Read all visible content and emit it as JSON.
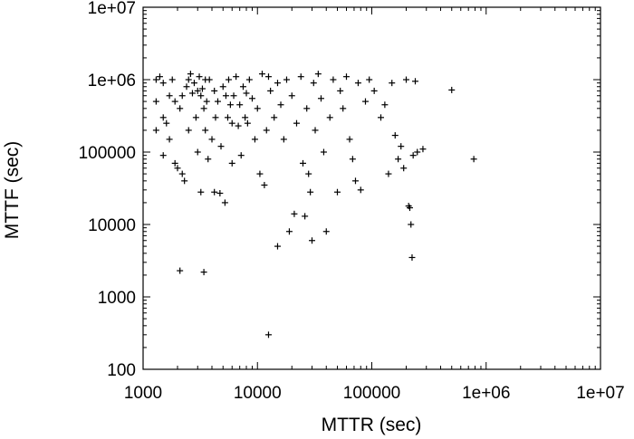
{
  "chart_data": {
    "type": "scatter",
    "title": "",
    "xlabel": "MTTR (sec)",
    "ylabel": "MTTF (sec)",
    "xscale": "log",
    "yscale": "log",
    "xlim": [
      1000,
      10000000
    ],
    "ylim": [
      100,
      10000000
    ],
    "grid": false,
    "legend": "none",
    "marker": "+",
    "marker_color": "#000000",
    "xticks": [
      "1000",
      "10000",
      "100000",
      "1e+06",
      "1e+07"
    ],
    "yticks": [
      "100",
      "1000",
      "10000",
      "100000",
      "1e+06",
      "1e+07"
    ],
    "points": [
      [
        1300,
        1000000
      ],
      [
        1300,
        500000
      ],
      [
        1300,
        200000
      ],
      [
        1400,
        1100000
      ],
      [
        1500,
        900000
      ],
      [
        1500,
        300000
      ],
      [
        1600,
        250000
      ],
      [
        1700,
        600000
      ],
      [
        1700,
        150000
      ],
      [
        1500,
        90000
      ],
      [
        1800,
        1000000
      ],
      [
        1900,
        500000
      ],
      [
        1900,
        70000
      ],
      [
        2000,
        60000
      ],
      [
        2100,
        400000
      ],
      [
        2200,
        600000
      ],
      [
        2200,
        50000
      ],
      [
        2300,
        40000
      ],
      [
        2400,
        800000
      ],
      [
        2500,
        1000000
      ],
      [
        2500,
        200000
      ],
      [
        2600,
        1200000
      ],
      [
        2700,
        650000
      ],
      [
        2800,
        900000
      ],
      [
        2900,
        300000
      ],
      [
        3000,
        700000
      ],
      [
        3000,
        100000
      ],
      [
        3100,
        1100000
      ],
      [
        3200,
        600000
      ],
      [
        3200,
        28000
      ],
      [
        3300,
        750000
      ],
      [
        3400,
        400000
      ],
      [
        3500,
        1000000
      ],
      [
        3500,
        200000
      ],
      [
        3600,
        500000
      ],
      [
        3700,
        80000
      ],
      [
        3800,
        1000000
      ],
      [
        4000,
        150000
      ],
      [
        4200,
        700000
      ],
      [
        4200,
        28000
      ],
      [
        4300,
        300000
      ],
      [
        4500,
        500000
      ],
      [
        4700,
        27000
      ],
      [
        4800,
        120000
      ],
      [
        5000,
        800000
      ],
      [
        5200,
        20000
      ],
      [
        5300,
        600000
      ],
      [
        5500,
        300000
      ],
      [
        5600,
        1000000
      ],
      [
        5800,
        450000
      ],
      [
        6000,
        250000
      ],
      [
        6000,
        70000
      ],
      [
        6200,
        600000
      ],
      [
        6500,
        1100000
      ],
      [
        6800,
        230000
      ],
      [
        7000,
        450000
      ],
      [
        7200,
        90000
      ],
      [
        7500,
        800000
      ],
      [
        7800,
        300000
      ],
      [
        8000,
        650000
      ],
      [
        8200,
        250000
      ],
      [
        8500,
        1000000
      ],
      [
        9000,
        550000
      ],
      [
        9500,
        150000
      ],
      [
        10000,
        400000
      ],
      [
        10500,
        50000
      ],
      [
        11000,
        1200000
      ],
      [
        11500,
        35000
      ],
      [
        12000,
        200000
      ],
      [
        12500,
        1100000
      ],
      [
        13000,
        700000
      ],
      [
        14000,
        300000
      ],
      [
        15000,
        900000
      ],
      [
        15000,
        5000
      ],
      [
        16000,
        450000
      ],
      [
        17000,
        150000
      ],
      [
        18000,
        1000000
      ],
      [
        19000,
        8000
      ],
      [
        20000,
        600000
      ],
      [
        21000,
        14000
      ],
      [
        22000,
        250000
      ],
      [
        24000,
        1100000
      ],
      [
        25000,
        70000
      ],
      [
        26000,
        13000
      ],
      [
        27000,
        400000
      ],
      [
        28000,
        50000
      ],
      [
        29000,
        28000
      ],
      [
        30000,
        6000
      ],
      [
        31000,
        900000
      ],
      [
        32000,
        200000
      ],
      [
        34000,
        1200000
      ],
      [
        36000,
        550000
      ],
      [
        38000,
        100000
      ],
      [
        40000,
        8000
      ],
      [
        43000,
        300000
      ],
      [
        46000,
        1000000
      ],
      [
        50000,
        28000
      ],
      [
        53000,
        700000
      ],
      [
        56000,
        400000
      ],
      [
        60000,
        1100000
      ],
      [
        64000,
        150000
      ],
      [
        68000,
        80000
      ],
      [
        72000,
        40000
      ],
      [
        76000,
        900000
      ],
      [
        80000,
        30000
      ],
      [
        88000,
        500000
      ],
      [
        95000,
        1000000
      ],
      [
        105000,
        700000
      ],
      [
        120000,
        300000
      ],
      [
        130000,
        450000
      ],
      [
        140000,
        50000
      ],
      [
        150000,
        900000
      ],
      [
        160000,
        170000
      ],
      [
        170000,
        80000
      ],
      [
        180000,
        120000
      ],
      [
        190000,
        60000
      ],
      [
        200000,
        1000000
      ],
      [
        210000,
        18000
      ],
      [
        215000,
        17000
      ],
      [
        220000,
        10000
      ],
      [
        225000,
        3500
      ],
      [
        230000,
        90000
      ],
      [
        240000,
        950000
      ],
      [
        250000,
        100000
      ],
      [
        280000,
        110000
      ],
      [
        500000,
        720000
      ],
      [
        780000,
        80000
      ],
      [
        2100,
        2300
      ],
      [
        3400,
        2200
      ],
      [
        12500,
        300
      ]
    ]
  }
}
